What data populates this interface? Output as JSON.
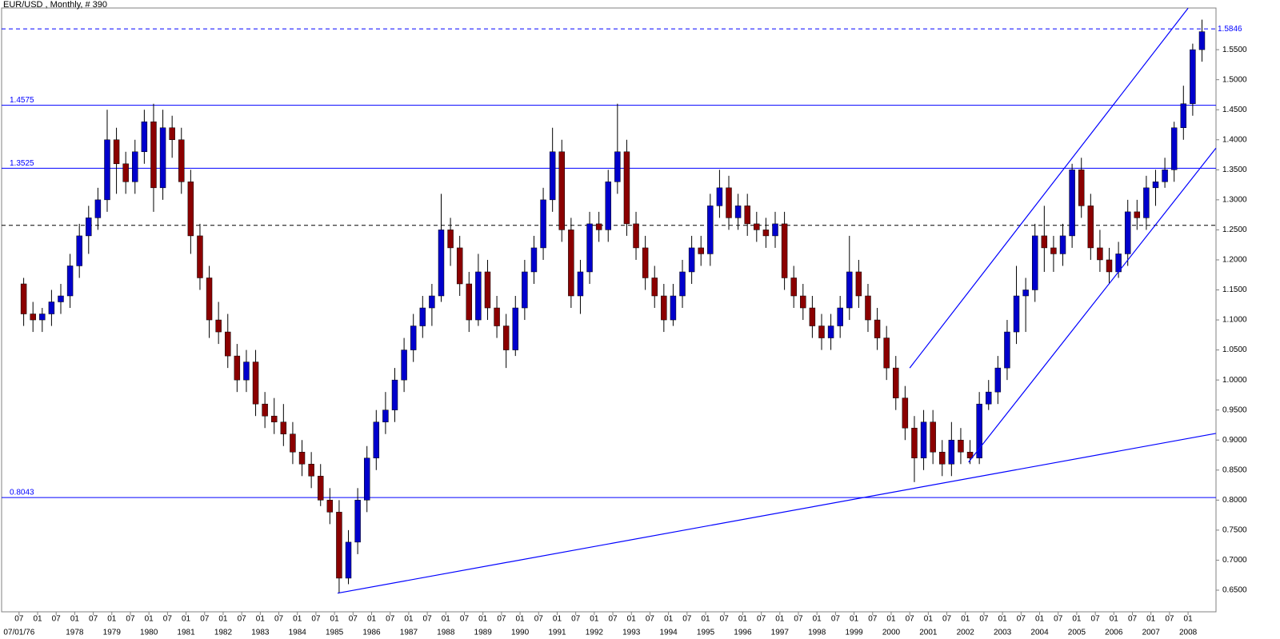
{
  "chart_data": {
    "type": "candlestick",
    "title": "EUR/USD , Monthly, # 390",
    "up_color": "#0000cc",
    "down_color": "#8b0000",
    "wick_color": "#000000",
    "ylim": [
      0.614,
      1.6194
    ],
    "yticks": [
      {
        "value": 0.65,
        "label": "0.6500"
      },
      {
        "value": 0.7,
        "label": "0.7000"
      },
      {
        "value": 0.75,
        "label": "0.7500"
      },
      {
        "value": 0.8,
        "label": "0.8000"
      },
      {
        "value": 0.85,
        "label": "0.8500"
      },
      {
        "value": 0.9,
        "label": "0.9000"
      },
      {
        "value": 0.95,
        "label": "0.9500"
      },
      {
        "value": 1.0,
        "label": "1.0000"
      },
      {
        "value": 1.05,
        "label": "1.0500"
      },
      {
        "value": 1.1,
        "label": "1.1000"
      },
      {
        "value": 1.15,
        "label": "1.1500"
      },
      {
        "value": 1.2,
        "label": "1.2000"
      },
      {
        "value": 1.25,
        "label": "1.2500"
      },
      {
        "value": 1.3,
        "label": "1.3000"
      },
      {
        "value": 1.35,
        "label": "1.3500"
      },
      {
        "value": 1.4,
        "label": "1.4000"
      },
      {
        "value": 1.45,
        "label": "1.4500"
      },
      {
        "value": 1.5,
        "label": "1.5000"
      },
      {
        "value": 1.55,
        "label": "1.5500"
      }
    ],
    "xticks": [
      {
        "value": "1976-07",
        "label": "07"
      },
      {
        "value": "1977-01",
        "label": "01"
      },
      {
        "value": "1977-07",
        "label": "07"
      },
      {
        "value": "1978-01",
        "label": "01"
      },
      {
        "value": "1978-07",
        "label": "07"
      },
      {
        "value": "1979-01",
        "label": "01"
      },
      {
        "value": "1979-07",
        "label": "07"
      },
      {
        "value": "1980-01",
        "label": "01"
      },
      {
        "value": "1980-07",
        "label": "07"
      },
      {
        "value": "1981-01",
        "label": "01"
      },
      {
        "value": "1981-07",
        "label": "07"
      },
      {
        "value": "1982-01",
        "label": "01"
      },
      {
        "value": "1982-07",
        "label": "07"
      },
      {
        "value": "1983-01",
        "label": "01"
      },
      {
        "value": "1983-07",
        "label": "07"
      },
      {
        "value": "1984-01",
        "label": "01"
      },
      {
        "value": "1984-07",
        "label": "07"
      },
      {
        "value": "1985-01",
        "label": "01"
      },
      {
        "value": "1985-07",
        "label": "07"
      },
      {
        "value": "1986-01",
        "label": "01"
      },
      {
        "value": "1986-07",
        "label": "07"
      },
      {
        "value": "1987-01",
        "label": "01"
      },
      {
        "value": "1987-07",
        "label": "07"
      },
      {
        "value": "1988-01",
        "label": "01"
      },
      {
        "value": "1988-07",
        "label": "07"
      },
      {
        "value": "1989-01",
        "label": "01"
      },
      {
        "value": "1989-07",
        "label": "07"
      },
      {
        "value": "1990-01",
        "label": "01"
      },
      {
        "value": "1990-07",
        "label": "07"
      },
      {
        "value": "1991-01",
        "label": "01"
      },
      {
        "value": "1991-07",
        "label": "07"
      },
      {
        "value": "1992-01",
        "label": "01"
      },
      {
        "value": "1992-07",
        "label": "07"
      },
      {
        "value": "1993-01",
        "label": "01"
      },
      {
        "value": "1993-07",
        "label": "07"
      },
      {
        "value": "1994-01",
        "label": "01"
      },
      {
        "value": "1994-07",
        "label": "07"
      },
      {
        "value": "1995-01",
        "label": "01"
      },
      {
        "value": "1995-07",
        "label": "07"
      },
      {
        "value": "1996-01",
        "label": "01"
      },
      {
        "value": "1996-07",
        "label": "07"
      },
      {
        "value": "1997-01",
        "label": "01"
      },
      {
        "value": "1997-07",
        "label": "07"
      },
      {
        "value": "1998-01",
        "label": "01"
      },
      {
        "value": "1998-07",
        "label": "07"
      },
      {
        "value": "1999-01",
        "label": "01"
      },
      {
        "value": "1999-07",
        "label": "07"
      },
      {
        "value": "2000-01",
        "label": "01"
      },
      {
        "value": "2000-07",
        "label": "07"
      },
      {
        "value": "2001-01",
        "label": "01"
      },
      {
        "value": "2001-07",
        "label": "07"
      },
      {
        "value": "2002-01",
        "label": "01"
      },
      {
        "value": "2002-07",
        "label": "07"
      },
      {
        "value": "2003-01",
        "label": "01"
      },
      {
        "value": "2003-07",
        "label": "07"
      },
      {
        "value": "2004-01",
        "label": "01"
      },
      {
        "value": "2004-07",
        "label": "07"
      },
      {
        "value": "2005-01",
        "label": "01"
      },
      {
        "value": "2005-07",
        "label": "07"
      },
      {
        "value": "2006-01",
        "label": "01"
      },
      {
        "value": "2006-07",
        "label": "07"
      },
      {
        "value": "2007-01",
        "label": "01"
      },
      {
        "value": "2007-07",
        "label": "07"
      },
      {
        "value": "2008-01",
        "label": "01"
      }
    ],
    "xticks_years": [
      {
        "value": "1976-07",
        "label": "07/01/76"
      },
      {
        "value": "1978-01",
        "label": "1978"
      },
      {
        "value": "1979-01",
        "label": "1979"
      },
      {
        "value": "1980-01",
        "label": "1980"
      },
      {
        "value": "1981-01",
        "label": "1981"
      },
      {
        "value": "1982-01",
        "label": "1982"
      },
      {
        "value": "1983-01",
        "label": "1983"
      },
      {
        "value": "1984-01",
        "label": "1984"
      },
      {
        "value": "1985-01",
        "label": "1985"
      },
      {
        "value": "1986-01",
        "label": "1986"
      },
      {
        "value": "1987-01",
        "label": "1987"
      },
      {
        "value": "1988-01",
        "label": "1988"
      },
      {
        "value": "1989-01",
        "label": "1989"
      },
      {
        "value": "1990-01",
        "label": "1990"
      },
      {
        "value": "1991-01",
        "label": "1991"
      },
      {
        "value": "1992-01",
        "label": "1992"
      },
      {
        "value": "1993-01",
        "label": "1993"
      },
      {
        "value": "1994-01",
        "label": "1994"
      },
      {
        "value": "1995-01",
        "label": "1995"
      },
      {
        "value": "1996-01",
        "label": "1996"
      },
      {
        "value": "1997-01",
        "label": "1997"
      },
      {
        "value": "1998-01",
        "label": "1998"
      },
      {
        "value": "1999-01",
        "label": "1999"
      },
      {
        "value": "2000-01",
        "label": "2000"
      },
      {
        "value": "2001-01",
        "label": "2001"
      },
      {
        "value": "2002-01",
        "label": "2002"
      },
      {
        "value": "2003-01",
        "label": "2003"
      },
      {
        "value": "2004-01",
        "label": "2004"
      },
      {
        "value": "2005-01",
        "label": "2005"
      },
      {
        "value": "2006-01",
        "label": "2006"
      },
      {
        "value": "2007-01",
        "label": "2007"
      },
      {
        "value": "2008-01",
        "label": "2008"
      }
    ],
    "x": [
      "1976-07",
      "1976-10",
      "1977-01",
      "1977-04",
      "1977-07",
      "1977-10",
      "1978-01",
      "1978-04",
      "1978-07",
      "1978-10",
      "1979-01",
      "1979-04",
      "1979-07",
      "1979-10",
      "1980-01",
      "1980-04",
      "1980-07",
      "1980-10",
      "1981-01",
      "1981-04",
      "1981-07",
      "1981-10",
      "1982-01",
      "1982-04",
      "1982-07",
      "1982-10",
      "1983-01",
      "1983-04",
      "1983-07",
      "1983-10",
      "1984-01",
      "1984-04",
      "1984-07",
      "1984-10",
      "1985-01",
      "1985-04",
      "1985-07",
      "1985-10",
      "1986-01",
      "1986-04",
      "1986-07",
      "1986-10",
      "1987-01",
      "1987-04",
      "1987-07",
      "1987-10",
      "1988-01",
      "1988-04",
      "1988-07",
      "1988-10",
      "1989-01",
      "1989-04",
      "1989-07",
      "1989-10",
      "1990-01",
      "1990-04",
      "1990-07",
      "1990-10",
      "1991-01",
      "1991-04",
      "1991-07",
      "1991-10",
      "1992-01",
      "1992-04",
      "1992-07",
      "1992-10",
      "1993-01",
      "1993-04",
      "1993-07",
      "1993-10",
      "1994-01",
      "1994-04",
      "1994-07",
      "1994-10",
      "1995-01",
      "1995-04",
      "1995-07",
      "1995-10",
      "1996-01",
      "1996-04",
      "1996-07",
      "1996-10",
      "1997-01",
      "1997-04",
      "1997-07",
      "1997-10",
      "1998-01",
      "1998-04",
      "1998-07",
      "1998-10",
      "1999-01",
      "1999-04",
      "1999-07",
      "1999-10",
      "2000-01",
      "2000-04",
      "2000-07",
      "2000-10",
      "2001-01",
      "2001-04",
      "2001-07",
      "2001-10",
      "2002-01",
      "2002-04",
      "2002-07",
      "2002-10",
      "2003-01",
      "2003-04",
      "2003-07",
      "2003-10",
      "2004-01",
      "2004-04",
      "2004-07",
      "2004-10",
      "2005-01",
      "2005-04",
      "2005-07",
      "2005-10",
      "2006-01",
      "2006-04",
      "2006-07",
      "2006-10",
      "2007-01",
      "2007-04",
      "2007-07",
      "2007-10",
      "2008-01",
      "2008-04"
    ],
    "open": [
      1.16,
      1.11,
      1.1,
      1.11,
      1.13,
      1.14,
      1.19,
      1.24,
      1.27,
      1.3,
      1.4,
      1.36,
      1.33,
      1.38,
      1.43,
      1.32,
      1.42,
      1.4,
      1.33,
      1.24,
      1.17,
      1.1,
      1.08,
      1.04,
      1.0,
      1.03,
      0.96,
      0.94,
      0.93,
      0.91,
      0.88,
      0.86,
      0.84,
      0.8,
      0.78,
      0.67,
      0.73,
      0.8,
      0.87,
      0.93,
      0.95,
      1.0,
      1.05,
      1.09,
      1.12,
      1.14,
      1.25,
      1.22,
      1.16,
      1.1,
      1.18,
      1.12,
      1.09,
      1.05,
      1.12,
      1.18,
      1.22,
      1.3,
      1.38,
      1.25,
      1.14,
      1.18,
      1.26,
      1.25,
      1.33,
      1.38,
      1.26,
      1.22,
      1.17,
      1.14,
      1.1,
      1.14,
      1.18,
      1.22,
      1.21,
      1.29,
      1.32,
      1.27,
      1.29,
      1.26,
      1.25,
      1.24,
      1.26,
      1.17,
      1.14,
      1.12,
      1.09,
      1.07,
      1.09,
      1.12,
      1.18,
      1.14,
      1.1,
      1.07,
      1.02,
      0.97,
      0.92,
      0.87,
      0.93,
      0.88,
      0.86,
      0.9,
      0.88,
      0.87,
      0.96,
      0.98,
      1.02,
      1.08,
      1.14,
      1.15,
      1.24,
      1.22,
      1.21,
      1.24,
      1.35,
      1.29,
      1.22,
      1.2,
      1.18,
      1.21,
      1.28,
      1.27,
      1.32,
      1.33,
      1.35,
      1.42,
      1.46,
      1.55
    ],
    "high": [
      1.17,
      1.13,
      1.12,
      1.15,
      1.16,
      1.21,
      1.26,
      1.29,
      1.32,
      1.45,
      1.42,
      1.38,
      1.4,
      1.45,
      1.46,
      1.45,
      1.44,
      1.42,
      1.35,
      1.26,
      1.19,
      1.13,
      1.11,
      1.06,
      1.05,
      1.05,
      0.98,
      0.97,
      0.96,
      0.93,
      0.9,
      0.88,
      0.86,
      0.82,
      0.8,
      0.75,
      0.82,
      0.89,
      0.95,
      0.98,
      1.02,
      1.07,
      1.11,
      1.14,
      1.16,
      1.31,
      1.27,
      1.24,
      1.18,
      1.21,
      1.2,
      1.14,
      1.11,
      1.14,
      1.2,
      1.24,
      1.32,
      1.42,
      1.4,
      1.27,
      1.2,
      1.28,
      1.28,
      1.35,
      1.46,
      1.4,
      1.28,
      1.24,
      1.19,
      1.16,
      1.16,
      1.2,
      1.24,
      1.24,
      1.31,
      1.35,
      1.34,
      1.31,
      1.31,
      1.28,
      1.27,
      1.28,
      1.28,
      1.19,
      1.16,
      1.14,
      1.11,
      1.11,
      1.14,
      1.24,
      1.2,
      1.16,
      1.12,
      1.09,
      1.04,
      0.99,
      0.94,
      0.95,
      0.95,
      0.9,
      0.93,
      0.92,
      0.9,
      0.98,
      1.0,
      1.04,
      1.1,
      1.19,
      1.17,
      1.26,
      1.29,
      1.24,
      1.26,
      1.36,
      1.37,
      1.31,
      1.25,
      1.22,
      1.23,
      1.3,
      1.3,
      1.34,
      1.35,
      1.37,
      1.43,
      1.49,
      1.56,
      1.6
    ],
    "low": [
      1.09,
      1.08,
      1.08,
      1.09,
      1.11,
      1.12,
      1.17,
      1.21,
      1.25,
      1.28,
      1.31,
      1.31,
      1.31,
      1.36,
      1.28,
      1.3,
      1.37,
      1.31,
      1.21,
      1.15,
      1.07,
      1.06,
      1.02,
      0.98,
      0.98,
      0.94,
      0.92,
      0.91,
      0.89,
      0.86,
      0.84,
      0.82,
      0.79,
      0.76,
      0.645,
      0.66,
      0.71,
      0.78,
      0.85,
      0.91,
      0.93,
      0.98,
      1.03,
      1.07,
      1.09,
      1.13,
      1.19,
      1.14,
      1.08,
      1.09,
      1.1,
      1.07,
      1.02,
      1.04,
      1.1,
      1.16,
      1.2,
      1.28,
      1.23,
      1.12,
      1.11,
      1.16,
      1.23,
      1.23,
      1.31,
      1.24,
      1.2,
      1.15,
      1.12,
      1.08,
      1.09,
      1.12,
      1.16,
      1.19,
      1.19,
      1.27,
      1.25,
      1.25,
      1.24,
      1.23,
      1.22,
      1.22,
      1.15,
      1.12,
      1.1,
      1.07,
      1.05,
      1.05,
      1.07,
      1.1,
      1.12,
      1.08,
      1.05,
      1.0,
      0.95,
      0.9,
      0.83,
      0.85,
      0.86,
      0.84,
      0.84,
      0.86,
      0.86,
      0.86,
      0.95,
      0.96,
      1.0,
      1.06,
      1.08,
      1.13,
      1.18,
      1.18,
      1.19,
      1.22,
      1.27,
      1.2,
      1.18,
      1.16,
      1.17,
      1.19,
      1.25,
      1.25,
      1.29,
      1.32,
      1.33,
      1.4,
      1.44,
      1.53
    ],
    "close": [
      1.11,
      1.1,
      1.11,
      1.13,
      1.14,
      1.19,
      1.24,
      1.27,
      1.3,
      1.4,
      1.36,
      1.33,
      1.38,
      1.43,
      1.32,
      1.42,
      1.4,
      1.33,
      1.24,
      1.17,
      1.1,
      1.08,
      1.04,
      1.0,
      1.03,
      0.96,
      0.94,
      0.93,
      0.91,
      0.88,
      0.86,
      0.84,
      0.8,
      0.78,
      0.67,
      0.73,
      0.8,
      0.87,
      0.93,
      0.95,
      1.0,
      1.05,
      1.09,
      1.12,
      1.14,
      1.25,
      1.22,
      1.16,
      1.1,
      1.18,
      1.12,
      1.09,
      1.05,
      1.12,
      1.18,
      1.22,
      1.3,
      1.38,
      1.25,
      1.14,
      1.18,
      1.26,
      1.25,
      1.33,
      1.38,
      1.26,
      1.22,
      1.17,
      1.14,
      1.1,
      1.14,
      1.18,
      1.22,
      1.21,
      1.29,
      1.32,
      1.27,
      1.29,
      1.26,
      1.25,
      1.24,
      1.26,
      1.17,
      1.14,
      1.12,
      1.09,
      1.07,
      1.09,
      1.12,
      1.18,
      1.14,
      1.1,
      1.07,
      1.02,
      0.97,
      0.92,
      0.87,
      0.93,
      0.88,
      0.86,
      0.9,
      0.88,
      0.87,
      0.96,
      0.98,
      1.02,
      1.08,
      1.14,
      1.15,
      1.24,
      1.22,
      1.21,
      1.24,
      1.35,
      1.29,
      1.22,
      1.2,
      1.18,
      1.21,
      1.28,
      1.27,
      1.32,
      1.33,
      1.35,
      1.42,
      1.46,
      1.55,
      1.58
    ],
    "levels": [
      {
        "value": 1.5846,
        "color": "#0000ff",
        "dashed": true,
        "labeled": true,
        "label_side": "right"
      },
      {
        "value": 1.4575,
        "color": "#0000ff",
        "dashed": false,
        "labeled": true,
        "label_side": "left"
      },
      {
        "value": 1.3525,
        "color": "#0000ff",
        "dashed": false,
        "labeled": true,
        "label_side": "left"
      },
      {
        "value": 1.2575,
        "color": "#000000",
        "dashed": true,
        "labeled": false,
        "label_side": "left"
      },
      {
        "value": 0.8043,
        "color": "#0000ff",
        "dashed": false,
        "labeled": true,
        "label_side": "left"
      }
    ],
    "trend_lines": [
      {
        "x": [
          "1985-02",
          "2008-10"
        ],
        "values": [
          0.645,
          0.911
        ],
        "color": "#0000ff"
      },
      {
        "x": [
          "2000-07",
          "2008-01"
        ],
        "values": [
          1.02,
          1.619
        ],
        "color": "#0000ff"
      },
      {
        "x": [
          "2002-02",
          "2008-10"
        ],
        "values": [
          0.863,
          1.386
        ],
        "color": "#0000ff"
      }
    ]
  }
}
